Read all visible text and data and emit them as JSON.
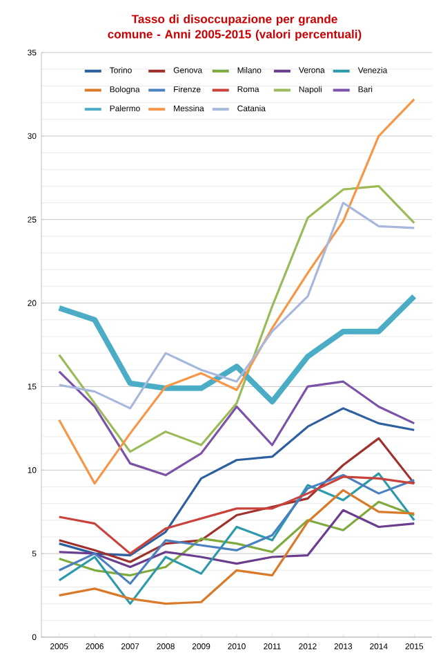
{
  "chart_data": {
    "type": "line",
    "title": "Tasso di disoccupazione per grande comune - Anni 2005-2015 (valori percentuali)",
    "categories": [
      "2005",
      "2006",
      "2007",
      "2008",
      "2009",
      "2010",
      "2011",
      "2012",
      "2013",
      "2014",
      "2015"
    ],
    "ylim": [
      0,
      35
    ],
    "yticks": [
      0,
      5,
      10,
      15,
      20,
      25,
      30,
      35
    ],
    "grid": "y",
    "legend": "top",
    "marker": "none",
    "series": [
      {
        "name": "Torino",
        "color": "#2e5f9e",
        "values": [
          5.6,
          5.0,
          4.9,
          6.3,
          9.5,
          10.6,
          10.8,
          12.6,
          13.7,
          12.8,
          12.4
        ]
      },
      {
        "name": "Genova",
        "color": "#a0302b",
        "values": [
          5.8,
          5.2,
          4.5,
          5.6,
          5.8,
          7.3,
          7.8,
          8.3,
          10.3,
          11.9,
          9.2
        ]
      },
      {
        "name": "Milano",
        "color": "#7fab3e",
        "values": [
          4.7,
          4.0,
          3.7,
          4.2,
          5.9,
          5.6,
          5.1,
          7.0,
          6.4,
          8.1,
          7.3
        ]
      },
      {
        "name": "Verona",
        "color": "#6a3d8f",
        "values": [
          5.1,
          5.0,
          4.2,
          5.1,
          4.8,
          4.4,
          4.8,
          4.9,
          7.6,
          6.6,
          6.8
        ]
      },
      {
        "name": "Venezia",
        "color": "#2b9aab",
        "values": [
          3.4,
          4.8,
          2.0,
          4.8,
          3.8,
          6.6,
          5.8,
          9.1,
          8.2,
          9.8,
          7.0
        ]
      },
      {
        "name": "Bologna",
        "color": "#d97a2b",
        "values": [
          2.5,
          2.9,
          2.3,
          2.0,
          2.1,
          4.0,
          3.7,
          6.9,
          8.8,
          7.5,
          7.4
        ]
      },
      {
        "name": "Firenze",
        "color": "#4a7fc1",
        "values": [
          4.0,
          5.0,
          3.2,
          5.8,
          5.5,
          5.2,
          6.1,
          8.9,
          9.7,
          8.6,
          9.4
        ]
      },
      {
        "name": "Roma",
        "color": "#c9423b",
        "values": [
          7.2,
          6.8,
          5.0,
          6.5,
          7.1,
          7.7,
          7.7,
          8.6,
          9.6,
          9.5,
          9.2
        ]
      },
      {
        "name": "Napoli",
        "color": "#9bbb59",
        "values": [
          16.9,
          14.0,
          11.1,
          12.3,
          11.5,
          14.0,
          19.8,
          25.1,
          26.8,
          27.0,
          24.8
        ]
      },
      {
        "name": "Bari",
        "color": "#7b52a8",
        "values": [
          15.9,
          13.8,
          10.4,
          9.7,
          11.0,
          13.8,
          11.5,
          15.0,
          15.3,
          13.8,
          12.8
        ]
      },
      {
        "name": "Palermo",
        "color": "#4bacc6",
        "values": [
          19.7,
          19.0,
          15.2,
          14.9,
          14.9,
          16.2,
          14.1,
          16.8,
          18.3,
          18.3,
          20.4
        ]
      },
      {
        "name": "Messina",
        "color": "#f79646",
        "values": [
          13.0,
          9.2,
          12.2,
          15.0,
          15.8,
          14.8,
          18.5,
          21.8,
          24.9,
          30.0,
          32.2
        ]
      },
      {
        "name": "Catania",
        "color": "#a8b8dc",
        "values": [
          15.1,
          14.7,
          13.7,
          17.0,
          16.0,
          15.3,
          18.3,
          20.4,
          26.0,
          24.6,
          24.5
        ]
      }
    ]
  }
}
